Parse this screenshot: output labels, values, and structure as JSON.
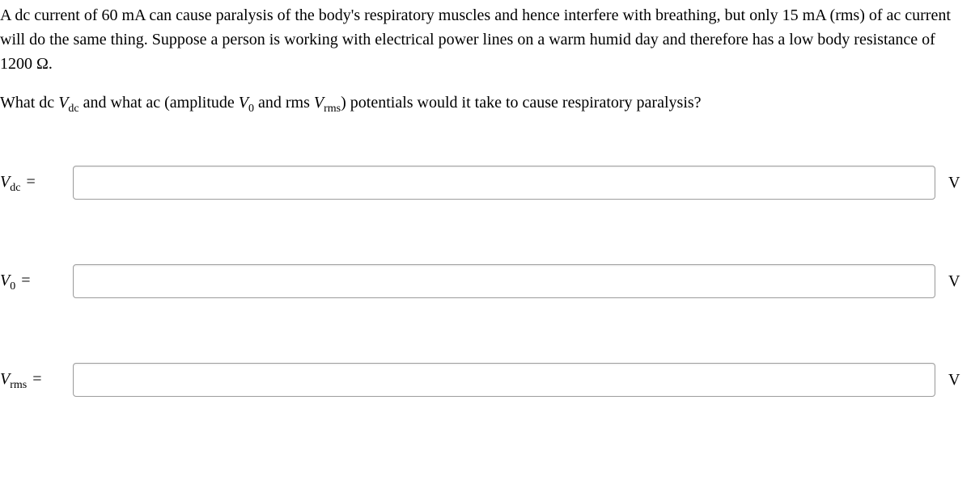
{
  "problem": {
    "paragraph1": "A dc current of 60 mA can cause paralysis of the body's respiratory muscles and hence interfere with breathing, but only 15 mA (rms) of ac current will do the same thing. Suppose a person is working with electrical power lines on a warm humid day and therefore has a low body resistance of 1200 Ω.",
    "question_prefix": "What dc ",
    "var_vdc": "V",
    "var_vdc_sub": "dc",
    "question_mid1": " and what ac (amplitude ",
    "var_v0": "V",
    "var_v0_sub": "0",
    "question_mid2": " and rms ",
    "var_vrms": "V",
    "var_vrms_sub": "rms",
    "question_suffix": ") potentials would it take to cause respiratory paralysis?"
  },
  "inputs": {
    "vdc": {
      "label_var": "V",
      "label_sub": "dc",
      "equals": " =",
      "value": "",
      "unit": "V"
    },
    "v0": {
      "label_var": "V",
      "label_sub": "0",
      "equals": " =",
      "value": "",
      "unit": "V"
    },
    "vrms": {
      "label_var": "V",
      "label_sub": "rms",
      "equals": " =",
      "value": "",
      "unit": "V"
    }
  },
  "styling": {
    "font_family": "Times New Roman",
    "body_font_size": 20,
    "sub_font_size": 14,
    "text_color": "#000000",
    "background_color": "#ffffff",
    "input_border_color": "#9d9d9d",
    "input_height": 42,
    "input_border_radius": 4,
    "row_spacing": 80
  }
}
